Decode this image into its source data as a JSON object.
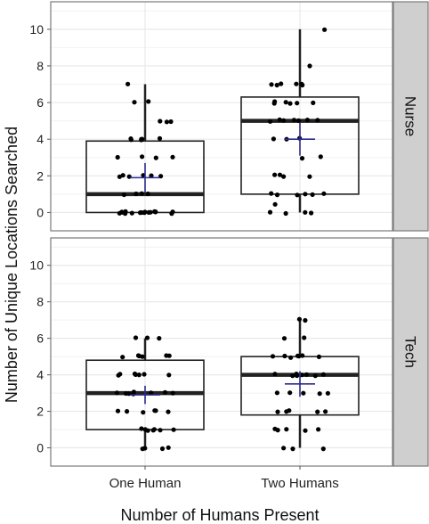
{
  "chart_data": {
    "type": "boxplot",
    "xlabel": "Number of Humans Present",
    "ylabel": "Number of Unique Locations Searched",
    "categories": [
      "One Human",
      "Two Humans"
    ],
    "ylim": [
      -1,
      11.5
    ],
    "yticks": [
      0,
      2,
      4,
      6,
      8,
      10
    ],
    "grid": true,
    "colors": {
      "mean_marker": "#2b2b8f",
      "box_stroke": "#222222",
      "point": "#000000",
      "strip_bg": "#cfcfcf",
      "grid": "#e8e8e8"
    },
    "panels": [
      {
        "facet": "Nurse",
        "boxes": [
          {
            "category": "One Human",
            "q1": 0,
            "median": 1,
            "q3": 3.9,
            "whisker_low": 0,
            "whisker_high": 7,
            "mean": 1.9,
            "mean_ci": [
              1.1,
              2.7
            ],
            "points": [
              0,
              0,
              0,
              0,
              0,
              0,
              0,
              0,
              0,
              0,
              0,
              0,
              0,
              0,
              0,
              0,
              0,
              1,
              1,
              1,
              1,
              2,
              2,
              2,
              2,
              2,
              2,
              3,
              3,
              3,
              3,
              4,
              4,
              4,
              4,
              4,
              4,
              5,
              5,
              5,
              6,
              6,
              7
            ]
          },
          {
            "category": "Two Humans",
            "q1": 1,
            "median": 5,
            "q3": 6.3,
            "whisker_low": 0,
            "whisker_high": 10,
            "mean": 4.0,
            "mean_ci": [
              3.1,
              4.9
            ],
            "points": [
              0,
              0,
              0,
              0,
              0.5,
              1,
              1,
              1,
              1,
              1,
              1,
              2,
              2,
              2,
              2,
              3,
              3,
              4,
              4,
              4,
              5,
              5,
              5,
              5,
              5,
              5,
              5,
              6,
              6,
              6,
              6,
              6,
              6,
              7,
              7,
              7,
              7,
              7,
              7,
              8,
              10
            ]
          }
        ]
      },
      {
        "facet": "Tech",
        "boxes": [
          {
            "category": "One Human",
            "q1": 1,
            "median": 3,
            "q3": 4.8,
            "whisker_low": 0,
            "whisker_high": 6,
            "mean": 2.9,
            "mean_ci": [
              2.4,
              3.4
            ],
            "points": [
              0,
              0,
              0,
              0,
              1,
              1,
              1,
              1,
              1,
              1,
              1,
              2,
              2,
              2,
              2,
              2,
              2,
              3,
              3,
              3,
              3,
              3,
              3,
              3,
              3,
              4,
              4,
              4,
              4,
              4,
              4,
              4,
              5,
              5,
              5,
              5,
              5,
              5,
              6,
              6,
              6
            ]
          },
          {
            "category": "Two Humans",
            "q1": 1.8,
            "median": 4,
            "q3": 5,
            "whisker_low": 0,
            "whisker_high": 7,
            "mean": 3.5,
            "mean_ci": [
              2.8,
              4.2
            ],
            "points": [
              0,
              0,
              0,
              1,
              1,
              1,
              1,
              1,
              2,
              2,
              2,
              2,
              2,
              3,
              3,
              3,
              3,
              3,
              4,
              4,
              4,
              4,
              4,
              4,
              4,
              4,
              5,
              5,
              5,
              5,
              5,
              5,
              5,
              6,
              6,
              7,
              7
            ]
          }
        ]
      }
    ]
  }
}
